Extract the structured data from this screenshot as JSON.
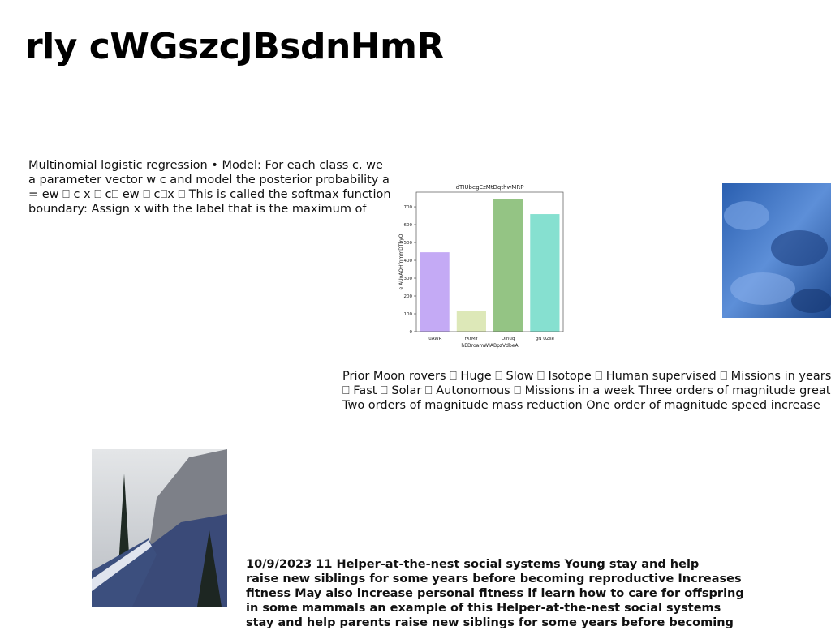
{
  "title": "rly cWGszcJBsdnHmR",
  "paragraphs": [
    {
      "lines": [
        "Multinomial logistic regression • Model: For each class c, we",
        "a parameter vector w c and model the posterior probability as:",
        "= ew ⎕ c x ⎕ c⎕ ew ⎕ c⎕x ⎕ This is called the softmax function. •",
        "boundary: Assign x with the label that is the maximum of"
      ]
    },
    {
      "lines": [
        "Prior Moon rovers ⎕ Huge ⎕ Slow ⎕ Isotope ⎕ Human supervised ⎕ Missions in years ⎕",
        "⎕ Fast ⎕ Solar ⎕ Autonomous ⎕ Missions in a week Three orders of magnitude greater",
        "Two orders of magnitude mass reduction One order of magnitude speed increase"
      ]
    },
    {
      "lines": [
        "10/9/2023 11 Helper-at-the-nest social systems Young stay and help",
        "raise new siblings for some years before becoming reproductive Increases",
        "fitness May also increase personal fitness if learn how to care for offspring",
        "in some mammals an example of this Helper-at-the-nest social systems",
        "stay and help parents raise new siblings for some years before becoming"
      ]
    }
  ],
  "chart_data": {
    "type": "bar",
    "title": "dTIUbegEzMtDqthwMRP",
    "x_label": "hEDroamWIABpzVdbeA",
    "y_label": "e AUoAQHfnmmDTbyO",
    "categories": [
      "iuAWR",
      "rXrMY",
      "OInuq",
      "gN UZse"
    ],
    "values": [
      445,
      114,
      745,
      659
    ],
    "colors": [
      "#c4aaf5",
      "#dde8b8",
      "#94c484",
      "#86e0d0"
    ],
    "ylim": [
      0,
      782
    ],
    "yticks": [
      0,
      100,
      200,
      300,
      400,
      500,
      600,
      700
    ]
  }
}
